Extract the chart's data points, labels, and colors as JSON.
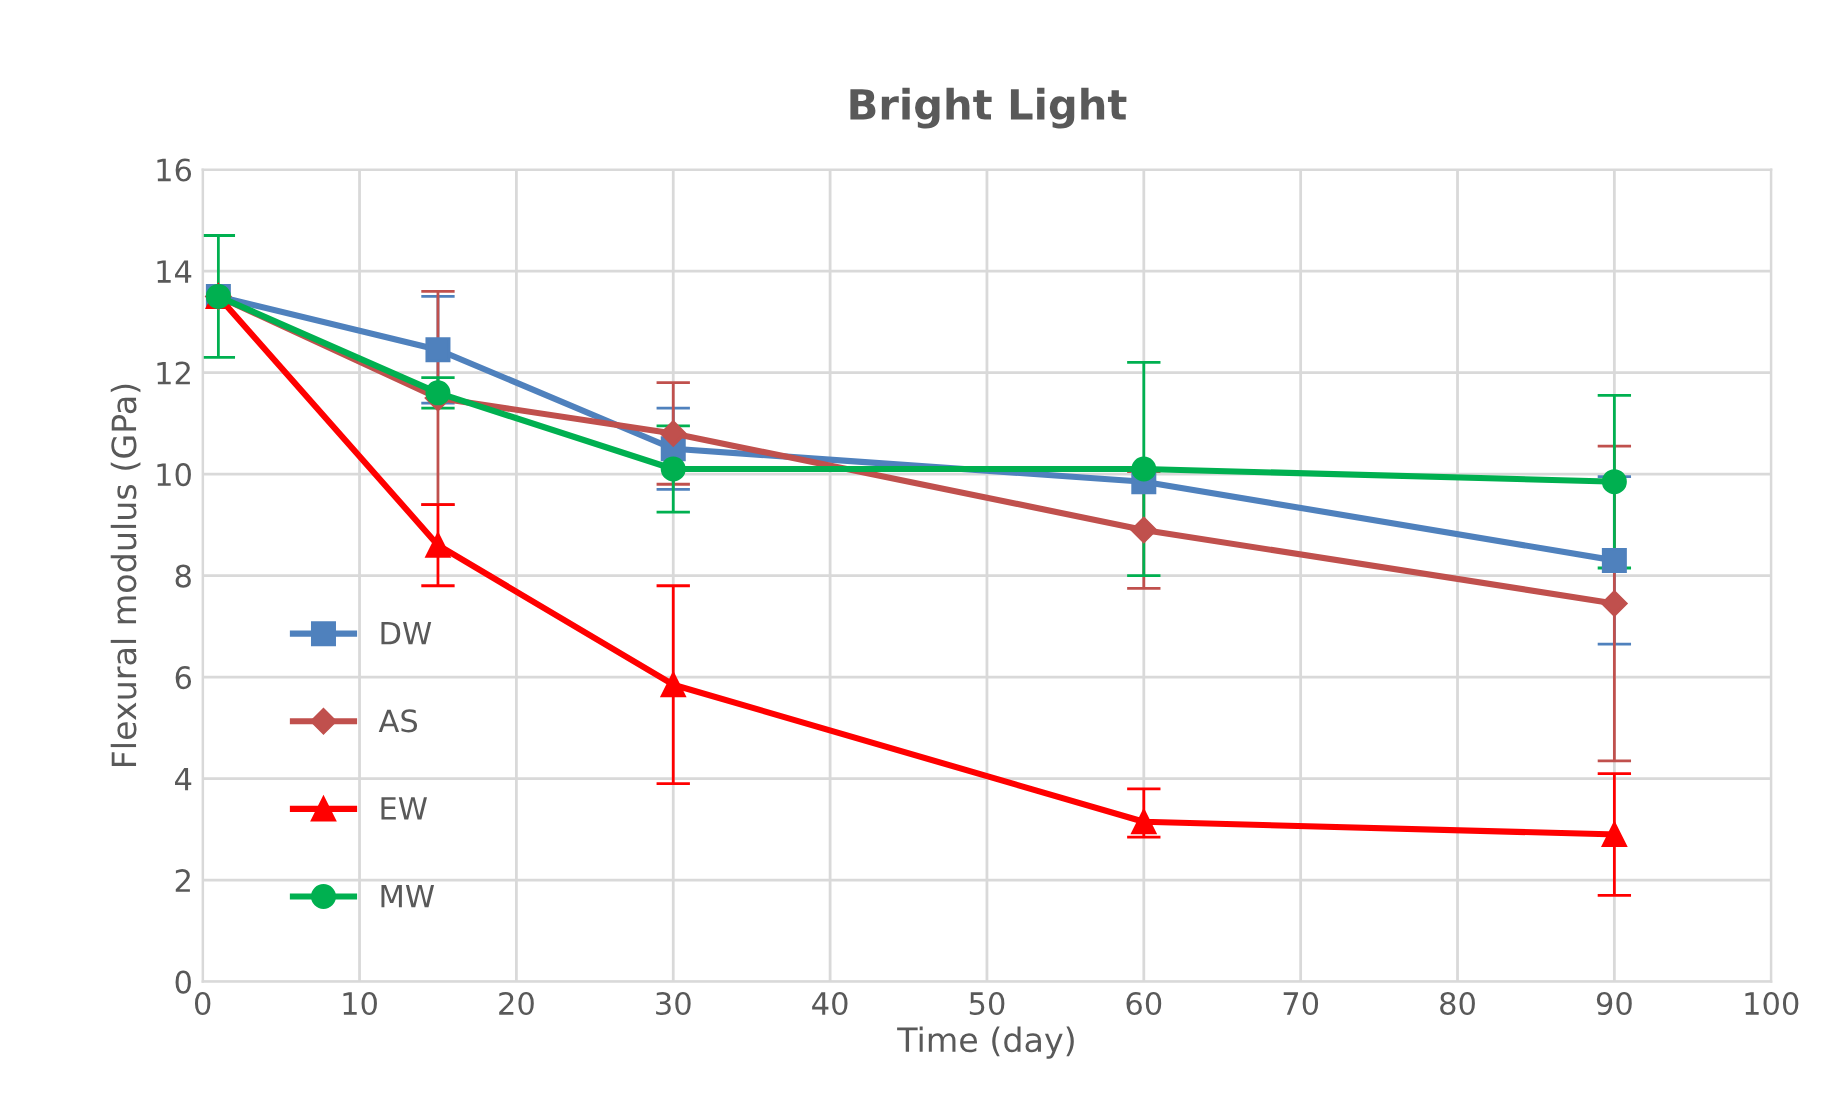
{
  "chart_data": {
    "type": "line",
    "title": "Bright Light",
    "xlabel": "Time (day)",
    "ylabel": "Flexural modulus (GPa)",
    "x": [
      1,
      15,
      30,
      60,
      90
    ],
    "series": [
      {
        "name": "DW",
        "color": "#4f81bd",
        "marker": "square",
        "values": [
          13.5,
          12.45,
          10.5,
          9.85,
          8.3
        ],
        "errors": [
          null,
          1.05,
          0.8,
          null,
          1.65
        ]
      },
      {
        "name": "AS",
        "color": "#c0504d",
        "marker": "diamond",
        "values": [
          13.5,
          11.5,
          10.8,
          8.9,
          7.45
        ],
        "errors": [
          null,
          2.1,
          1.0,
          1.15,
          3.1
        ]
      },
      {
        "name": "EW",
        "color": "#ff0000",
        "marker": "triangle",
        "values": [
          13.5,
          8.6,
          5.85,
          3.15,
          2.9
        ],
        "errors": [
          null,
          0.8,
          1.95,
          [
            2.85,
            3.8
          ],
          1.2
        ]
      },
      {
        "name": "MW",
        "color": "#00b050",
        "marker": "circle",
        "values": [
          13.5,
          11.6,
          10.1,
          10.1,
          9.85
        ],
        "errors": [
          1.2,
          0.3,
          0.85,
          2.1,
          1.7
        ]
      }
    ],
    "xlim": [
      0,
      100
    ],
    "xticks": [
      0,
      10,
      20,
      30,
      40,
      50,
      60,
      70,
      80,
      90,
      100
    ],
    "ylim": [
      0,
      16
    ],
    "yticks": [
      0,
      2,
      4,
      6,
      8,
      10,
      12,
      14,
      16
    ],
    "grid": true,
    "legend": "bottom left",
    "line_style": "solid"
  }
}
